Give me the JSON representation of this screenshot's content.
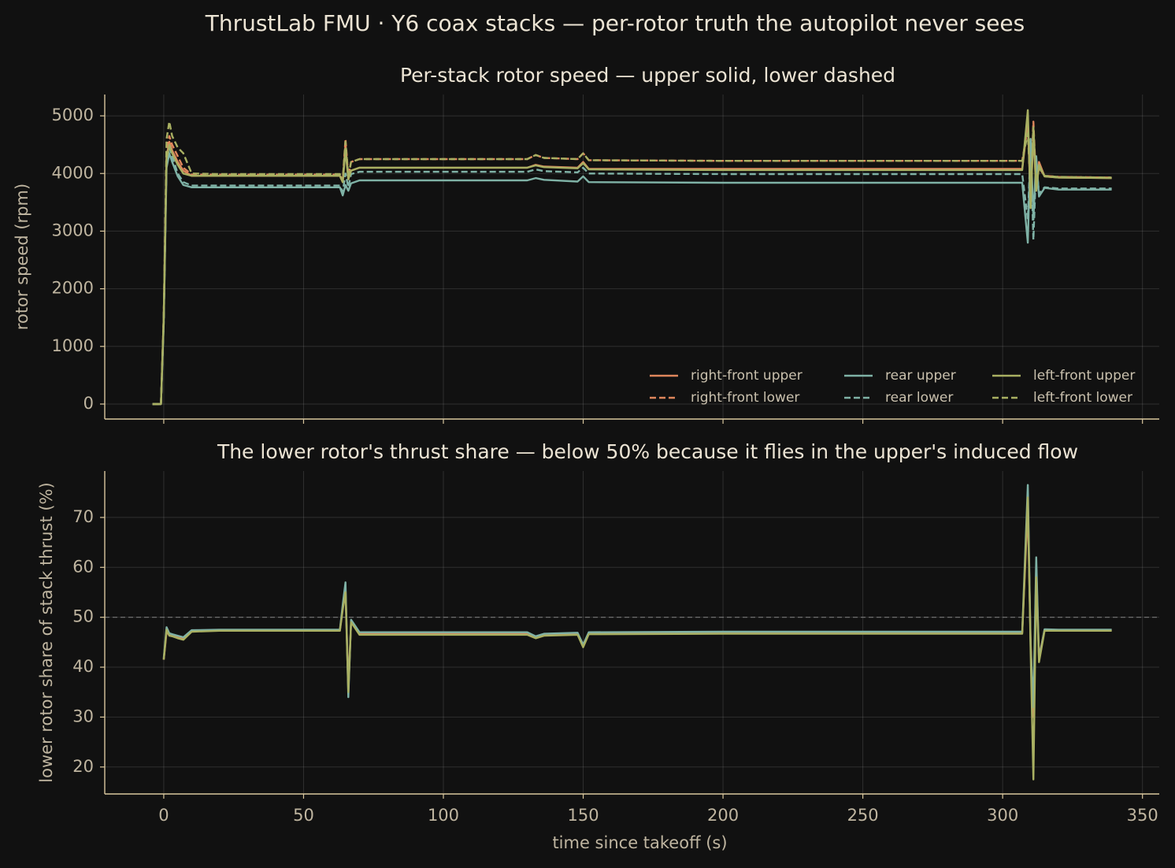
{
  "title": "ThrustLab FMU · Y6 coax stacks — per-rotor truth the autopilot never sees",
  "chart_data": [
    {
      "type": "line",
      "title": "Per-stack rotor speed — upper solid, lower dashed",
      "ylabel": "rotor speed (rpm)",
      "xlim": [
        -21.1,
        356
      ],
      "ylim": [
        -260,
        5370
      ],
      "xticks": [
        0,
        50,
        100,
        150,
        200,
        250,
        300,
        350
      ],
      "yticks": [
        0,
        1000,
        2000,
        3000,
        4000,
        5000
      ],
      "grid": true,
      "legend": "lower right",
      "x": [
        -4,
        -1,
        0,
        1,
        2,
        3,
        5,
        7,
        10,
        20,
        40,
        63,
        64,
        65,
        66,
        67,
        70,
        100,
        130,
        133,
        136,
        148,
        150,
        152,
        200,
        250,
        300,
        307,
        309,
        310,
        311,
        312,
        313,
        315,
        320,
        339
      ],
      "series": [
        {
          "name": "right-front upper",
          "color": "#e0875c",
          "linestyle": "solid",
          "values": [
            0,
            0,
            1500,
            4300,
            4550,
            4400,
            4200,
            4050,
            3960,
            3960,
            3960,
            3960,
            3850,
            4500,
            3900,
            4050,
            4100,
            4100,
            4100,
            4150,
            4120,
            4100,
            4200,
            4080,
            4080,
            4080,
            4080,
            4080,
            4900,
            3500,
            4700,
            3700,
            4200,
            3950,
            3930,
            3920
          ]
        },
        {
          "name": "right-front lower",
          "color": "#e0875c",
          "linestyle": "dashed",
          "values": [
            0,
            0,
            1500,
            4400,
            4650,
            4500,
            4300,
            4100,
            3980,
            3980,
            3980,
            3980,
            3880,
            4600,
            3950,
            4200,
            4250,
            4250,
            4250,
            4320,
            4270,
            4250,
            4350,
            4230,
            4220,
            4220,
            4220,
            4220,
            4800,
            3600,
            4900,
            3800,
            4100,
            3960,
            3940,
            3930
          ]
        },
        {
          "name": "rear upper",
          "color": "#7fb2a6",
          "linestyle": "solid",
          "values": [
            0,
            0,
            1400,
            4100,
            4350,
            4200,
            3950,
            3800,
            3760,
            3760,
            3760,
            3760,
            3620,
            3800,
            3700,
            3830,
            3880,
            3880,
            3880,
            3920,
            3890,
            3860,
            3950,
            3850,
            3840,
            3840,
            3840,
            3840,
            2800,
            4600,
            3200,
            4300,
            3600,
            3750,
            3720,
            3720
          ]
        },
        {
          "name": "rear lower",
          "color": "#7fb2a6",
          "linestyle": "dashed",
          "values": [
            0,
            0,
            1400,
            4200,
            4450,
            4300,
            4000,
            3850,
            3790,
            3790,
            3790,
            3790,
            3680,
            4000,
            3760,
            3990,
            4030,
            4030,
            4030,
            4070,
            4040,
            4020,
            4100,
            4000,
            3990,
            3990,
            3990,
            3990,
            3200,
            4500,
            2850,
            4200,
            3650,
            3760,
            3740,
            3740
          ]
        },
        {
          "name": "left-front upper",
          "color": "#a9b062",
          "linestyle": "solid",
          "values": [
            0,
            0,
            1500,
            4250,
            4500,
            4350,
            4150,
            4000,
            3960,
            3960,
            3960,
            3960,
            3850,
            4400,
            3900,
            4050,
            4100,
            4100,
            4100,
            4140,
            4110,
            4090,
            4180,
            4070,
            4060,
            4060,
            4060,
            4060,
            5100,
            3400,
            4800,
            3700,
            4150,
            3950,
            3930,
            3920
          ]
        },
        {
          "name": "left-front lower",
          "color": "#a9b062",
          "linestyle": "dashed",
          "values": [
            0,
            0,
            1500,
            4600,
            4900,
            4650,
            4450,
            4350,
            4000,
            3990,
            3990,
            3990,
            3880,
            4550,
            3950,
            4200,
            4250,
            4250,
            4250,
            4320,
            4270,
            4250,
            4350,
            4230,
            4220,
            4220,
            4220,
            4220,
            4700,
            3700,
            4800,
            3800,
            4100,
            3960,
            3940,
            3930
          ]
        }
      ]
    },
    {
      "type": "line",
      "title": "The lower rotor's thrust share — below 50% because it flies in the upper's induced flow",
      "ylabel": "lower rotor share of stack thrust (%)",
      "xlabel": "time since takeoff (s)",
      "xlim": [
        -21.1,
        356
      ],
      "ylim": [
        14.6,
        79.3
      ],
      "xticks": [
        0,
        50,
        100,
        150,
        200,
        250,
        300,
        350
      ],
      "yticks": [
        20,
        30,
        40,
        50,
        60,
        70
      ],
      "grid": true,
      "hline": 50,
      "x": [
        -4,
        -1,
        0,
        1,
        2,
        3,
        5,
        7,
        10,
        20,
        40,
        63,
        64,
        65,
        66,
        67,
        70,
        100,
        130,
        133,
        136,
        148,
        150,
        152,
        200,
        250,
        300,
        307,
        309,
        310,
        311,
        312,
        313,
        315,
        320,
        339
      ],
      "series": [
        {
          "color": "#e0875c",
          "values": [
            null,
            null,
            41.5,
            47,
            46.5,
            46.5,
            46,
            45.8,
            47.2,
            47.4,
            47.4,
            47.4,
            52,
            56,
            36,
            49,
            46.8,
            46.8,
            46.8,
            46,
            46.5,
            46.7,
            44.5,
            46.8,
            46.9,
            46.9,
            46.9,
            46.9,
            72,
            45,
            30,
            60,
            42,
            47.5,
            47.4,
            47.4
          ]
        },
        {
          "color": "#7fb2a6",
          "values": [
            null,
            null,
            41.8,
            48,
            46.8,
            46.6,
            46.3,
            46,
            47.4,
            47.5,
            47.5,
            47.5,
            52.5,
            57,
            34,
            49.5,
            47,
            47,
            47,
            46.2,
            46.7,
            46.9,
            44.5,
            47,
            47.1,
            47.1,
            47.1,
            47.1,
            76.5,
            44,
            32,
            62,
            41.5,
            47.6,
            47.5,
            47.5
          ]
        },
        {
          "color": "#a9b062",
          "values": [
            null,
            null,
            41.5,
            47.5,
            46.3,
            46.2,
            45.8,
            45.5,
            47.1,
            47.3,
            47.3,
            47.3,
            51.5,
            55,
            35,
            49,
            46.5,
            46.5,
            46.5,
            45.8,
            46.3,
            46.5,
            44,
            46.6,
            46.7,
            46.7,
            46.7,
            46.7,
            74,
            43,
            17.5,
            58,
            41,
            47.3,
            47.3,
            47.3
          ]
        }
      ]
    }
  ]
}
